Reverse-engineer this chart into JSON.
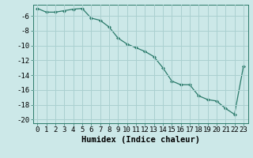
{
  "x": [
    0,
    1,
    2,
    3,
    4,
    5,
    6,
    7,
    8,
    9,
    10,
    11,
    12,
    13,
    14,
    15,
    16,
    17,
    18,
    19,
    20,
    21,
    22,
    23
  ],
  "y": [
    -5.0,
    -5.5,
    -5.5,
    -5.3,
    -5.1,
    -5.0,
    -6.3,
    -6.6,
    -7.5,
    -9.0,
    -9.8,
    -10.3,
    -10.8,
    -11.5,
    -13.0,
    -14.8,
    -15.3,
    -15.3,
    -16.8,
    -17.3,
    -17.5,
    -18.5,
    -19.3,
    -12.8
  ],
  "xlabel": "Humidex (Indice chaleur)",
  "ylim": [
    -20.5,
    -4.5
  ],
  "xlim": [
    -0.5,
    23.5
  ],
  "yticks": [
    -20,
    -18,
    -16,
    -14,
    -12,
    -10,
    -8,
    -6
  ],
  "xticks": [
    0,
    1,
    2,
    3,
    4,
    5,
    6,
    7,
    8,
    9,
    10,
    11,
    12,
    13,
    14,
    15,
    16,
    17,
    18,
    19,
    20,
    21,
    22,
    23
  ],
  "line_color": "#2a7a6a",
  "marker_color": "#2a7a6a",
  "bg_color": "#cce8e8",
  "grid_color": "#aad0d0",
  "tick_label_fontsize": 6.5,
  "xlabel_fontsize": 7.5
}
